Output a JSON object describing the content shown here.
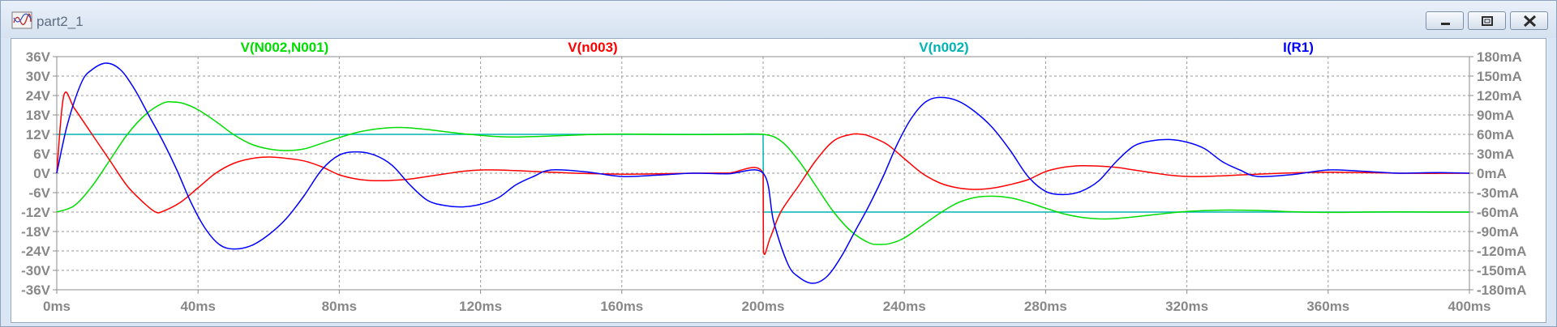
{
  "window": {
    "title": "part2_1"
  },
  "icons": {
    "app": "waveform-icon",
    "minimize": "minimize-icon",
    "maximize": "maximize-icon",
    "close": "close-icon"
  },
  "colors": {
    "green": "#00dd00",
    "red": "#ff0000",
    "cyan": "#00b4b4",
    "blue": "#0000ff",
    "grid": "#9a9a9a",
    "axis_text": "#888888"
  },
  "chart_data": {
    "type": "line",
    "x_unit": "ms",
    "xlim": [
      0,
      400
    ],
    "x_ticks": [
      0,
      40,
      80,
      120,
      160,
      200,
      240,
      280,
      320,
      360,
      400
    ],
    "x_tick_labels": [
      "0ms",
      "40ms",
      "80ms",
      "120ms",
      "160ms",
      "200ms",
      "240ms",
      "280ms",
      "320ms",
      "360ms",
      "400ms"
    ],
    "ylim_left": [
      -36,
      36
    ],
    "y_left_ticks": [
      36,
      30,
      24,
      18,
      12,
      6,
      0,
      -6,
      -12,
      -18,
      -24,
      -30,
      -36
    ],
    "y_left_tick_labels": [
      "36V",
      "30V",
      "24V",
      "18V",
      "12V",
      "6V",
      "0V",
      "-6V",
      "-12V",
      "-18V",
      "-24V",
      "-30V",
      "-36V"
    ],
    "ylim_right": [
      -180,
      180
    ],
    "y_right_ticks": [
      180,
      150,
      120,
      90,
      60,
      30,
      0,
      -30,
      -60,
      -90,
      -120,
      -150,
      -180
    ],
    "y_right_tick_labels": [
      "180mA",
      "150mA",
      "120mA",
      "90mA",
      "60mA",
      "30mA",
      "0mA",
      "-30mA",
      "-60mA",
      "-90mA",
      "-120mA",
      "-150mA",
      "-180mA"
    ],
    "grid": true,
    "series": [
      {
        "name": "V(N002,N001)",
        "color": "#00dd00",
        "axis": "left",
        "x": [
          0,
          5,
          10,
          15,
          20,
          25,
          30,
          33,
          36,
          40,
          45,
          50,
          55,
          60,
          65,
          70,
          75,
          80,
          85,
          90,
          95,
          98,
          100,
          105,
          110,
          115,
          120,
          125,
          130,
          140,
          150,
          160,
          170,
          180,
          190,
          200,
          205,
          210,
          215,
          220,
          225,
          230,
          233,
          236,
          240,
          245,
          250,
          255,
          260,
          265,
          270,
          275,
          280,
          285,
          290,
          295,
          298,
          300,
          305,
          310,
          315,
          320,
          330,
          340,
          350,
          360,
          370,
          380,
          390,
          400
        ],
        "y": [
          -12,
          -10,
          -4,
          4,
          12,
          18,
          21.6,
          22,
          21.5,
          19.6,
          16,
          12,
          9,
          7.5,
          7,
          7.5,
          9.2,
          11,
          12.6,
          13.6,
          14.1,
          14.1,
          14,
          13.5,
          12.8,
          12.2,
          11.7,
          11.3,
          11.2,
          11.5,
          11.9,
          12.1,
          12,
          11.95,
          12,
          12,
          10,
          4,
          -4,
          -12,
          -18,
          -21.5,
          -22,
          -21.7,
          -20,
          -16.2,
          -12.4,
          -9.2,
          -7.5,
          -7.1,
          -7.6,
          -9,
          -10.8,
          -12.5,
          -13.6,
          -14.1,
          -14.1,
          -14,
          -13.5,
          -12.9,
          -12.3,
          -11.8,
          -11.4,
          -11.5,
          -11.9,
          -12.1,
          -12,
          -11.95,
          -12,
          -12
        ]
      },
      {
        "name": "V(n003)",
        "color": "#ff0000",
        "axis": "left",
        "x": [
          0,
          2,
          5,
          10,
          15,
          20,
          25,
          28,
          30,
          35,
          40,
          45,
          50,
          55,
          60,
          65,
          70,
          75,
          80,
          85,
          90,
          95,
          100,
          105,
          110,
          115,
          120,
          125,
          130,
          140,
          150,
          160,
          170,
          180,
          190,
          200,
          200.1,
          202,
          205,
          210,
          215,
          220,
          225,
          228,
          230,
          235,
          240,
          245,
          250,
          255,
          260,
          265,
          270,
          275,
          280,
          285,
          290,
          295,
          300,
          305,
          310,
          315,
          320,
          325,
          330,
          340,
          350,
          360,
          370,
          380,
          390,
          400
        ],
        "y": [
          0,
          24,
          20,
          12,
          4,
          -4,
          -9.5,
          -12,
          -11.8,
          -9,
          -4.5,
          0,
          3,
          4.5,
          5,
          4.6,
          3.8,
          2,
          -0.5,
          -1.8,
          -2.3,
          -2.2,
          -1.8,
          -1,
          -0.2,
          0.6,
          1,
          1,
          0.8,
          0.3,
          -0.1,
          -0.3,
          -0.2,
          0,
          0.05,
          0,
          -24,
          -20,
          -12,
          -4,
          4,
          10,
          12,
          12,
          11.5,
          9,
          4.5,
          0,
          -3,
          -4.5,
          -5,
          -4.6,
          -3.5,
          -2,
          0.5,
          1.8,
          2.3,
          2.2,
          1.8,
          1,
          0.2,
          -0.6,
          -1,
          -1,
          -0.8,
          -0.3,
          0.1,
          0.3,
          0.2,
          0,
          -0.05,
          0
        ]
      },
      {
        "name": "V(n002)",
        "color": "#00b4b4",
        "axis": "left",
        "x": [
          0,
          200,
          200.1,
          400
        ],
        "y": [
          12,
          12,
          -12,
          -12
        ]
      },
      {
        "name": "I(R1)",
        "color": "#0000ff",
        "axis": "right",
        "x": [
          0,
          3,
          7,
          10,
          14,
          18,
          22,
          26,
          30,
          34,
          38,
          42,
          46,
          50,
          55,
          60,
          65,
          70,
          75,
          80,
          85,
          90,
          95,
          100,
          105,
          110,
          115,
          120,
          125,
          130,
          135,
          140,
          150,
          160,
          170,
          180,
          190,
          200,
          203,
          207,
          210,
          214,
          218,
          222,
          226,
          230,
          234,
          238,
          242,
          246,
          250,
          255,
          260,
          265,
          270,
          275,
          280,
          285,
          290,
          295,
          300,
          305,
          310,
          315,
          320,
          325,
          330,
          335,
          340,
          350,
          360,
          370,
          380,
          390,
          400
        ],
        "y": [
          0,
          75,
          140,
          160,
          170,
          160,
          130,
          90,
          50,
          5,
          -45,
          -85,
          -110,
          -117,
          -112,
          -95,
          -70,
          -35,
          5,
          28,
          33,
          28,
          12,
          -18,
          -42,
          -50,
          -52,
          -48,
          -38,
          -18,
          -5,
          5,
          2,
          -5,
          -3,
          0,
          -1,
          0,
          -75,
          -140,
          -160,
          -170,
          -160,
          -130,
          -90,
          -50,
          -5,
          45,
          85,
          110,
          117,
          112,
          95,
          70,
          35,
          -5,
          -28,
          -33,
          -28,
          -12,
          18,
          42,
          50,
          52,
          48,
          38,
          18,
          5,
          -5,
          -2,
          5,
          3,
          0,
          1,
          0
        ]
      }
    ]
  }
}
